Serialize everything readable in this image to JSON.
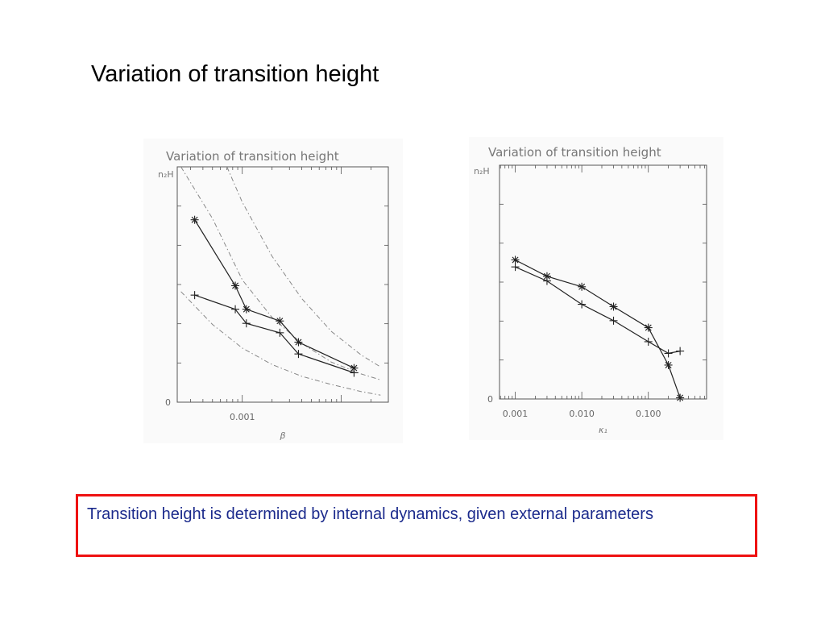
{
  "slide": {
    "title": "Variation of transition height",
    "note": "Transition height is determined by internal dynamics, given external parameters",
    "colors": {
      "note_text": "#1b2a8c",
      "note_border": "#ee1111"
    }
  },
  "chart_data": [
    {
      "type": "line",
      "title": "Variation of transition height",
      "xlabel": "β",
      "ylabel": "n₂H",
      "x_scale": "log",
      "xlim": [
        0.00022,
        0.03
      ],
      "ylim": [
        0,
        1
      ],
      "x_tick_labels": [
        {
          "value": 0.001,
          "label": "0.001"
        }
      ],
      "y_tick_labels": [
        {
          "value": 0,
          "label": "0"
        }
      ],
      "series": [
        {
          "marker": "asterisk",
          "x": [
            0.00033,
            0.00085,
            0.0011,
            0.0024,
            0.0037,
            0.0135
          ],
          "y": [
            0.775,
            0.495,
            0.395,
            0.345,
            0.255,
            0.145
          ]
        },
        {
          "marker": "plus",
          "x": [
            0.00033,
            0.00085,
            0.0011,
            0.0024,
            0.0037,
            0.0135
          ],
          "y": [
            0.455,
            0.395,
            0.335,
            0.295,
            0.205,
            0.125
          ]
        }
      ],
      "reference_curves": [
        {
          "style": "dash-dot",
          "x": [
            0.00024,
            0.0005,
            0.001,
            0.002,
            0.004,
            0.008,
            0.016,
            0.025
          ],
          "y": [
            1.0,
            0.78,
            0.52,
            0.36,
            0.25,
            0.17,
            0.12,
            0.095
          ]
        },
        {
          "style": "dash-dot",
          "x": [
            0.0007,
            0.001,
            0.002,
            0.004,
            0.008,
            0.016,
            0.025
          ],
          "y": [
            1.0,
            0.85,
            0.62,
            0.44,
            0.3,
            0.2,
            0.15
          ]
        },
        {
          "style": "dash-dot",
          "x": [
            0.00024,
            0.0005,
            0.001,
            0.002,
            0.004,
            0.008,
            0.016,
            0.025
          ],
          "y": [
            0.47,
            0.33,
            0.23,
            0.16,
            0.11,
            0.075,
            0.045,
            0.03
          ]
        }
      ]
    },
    {
      "type": "line",
      "title": "Variation of transition height",
      "xlabel": "κ₁",
      "ylabel": "n₂H",
      "x_scale": "log",
      "xlim": [
        0.00058,
        0.75
      ],
      "ylim": [
        0,
        1
      ],
      "x_tick_labels": [
        {
          "value": 0.001,
          "label": "0.001"
        },
        {
          "value": 0.01,
          "label": "0.010"
        },
        {
          "value": 0.1,
          "label": "0.100"
        }
      ],
      "y_tick_labels": [
        {
          "value": 0,
          "label": "0"
        }
      ],
      "series": [
        {
          "marker": "asterisk",
          "x": [
            0.001,
            0.003,
            0.01,
            0.03,
            0.1,
            0.2,
            0.3
          ],
          "y": [
            0.595,
            0.525,
            0.48,
            0.395,
            0.305,
            0.145,
            0.005
          ]
        },
        {
          "marker": "plus",
          "x": [
            0.001,
            0.003,
            0.01,
            0.03,
            0.1,
            0.2,
            0.3
          ],
          "y": [
            0.565,
            0.505,
            0.405,
            0.335,
            0.245,
            0.195,
            0.205
          ]
        }
      ]
    }
  ]
}
